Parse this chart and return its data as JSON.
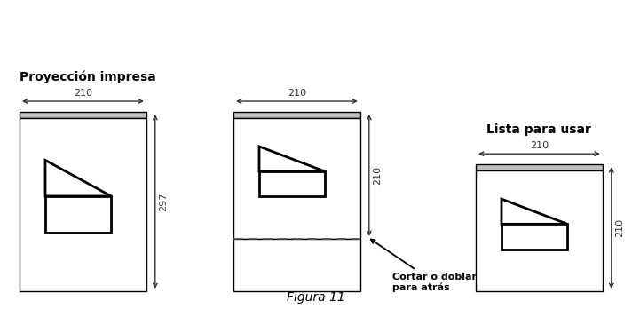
{
  "title": "Figura 11",
  "label_left": "Proyección impresa",
  "label_right": "Lista para usar",
  "annotation": "Cortar o doblar\npara atrás",
  "bg_color": "#ffffff",
  "line_color": "#000000",
  "gray_color": "#c0c0c0",
  "dim_color": "#333333",
  "shape_color": "#000000",
  "dashed_color": "#555555"
}
